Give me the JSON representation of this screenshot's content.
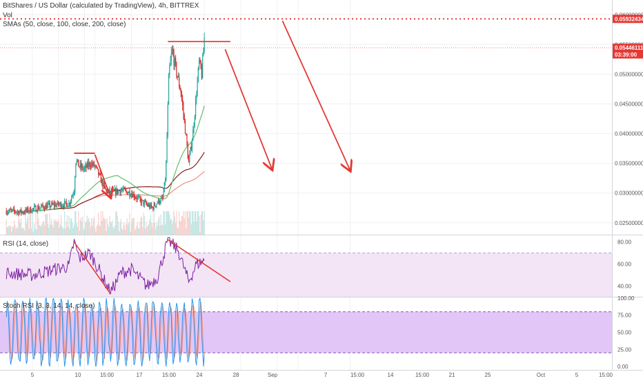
{
  "header": {
    "title": "BitShares / US Dollar (calculated by TradingView), 4h, BITTREX",
    "vol_label": "Vol",
    "sma_label": "SMAs (50, close, 100, close, 200, close)"
  },
  "panes": {
    "rsi_title": "RSI (14, close)",
    "stoch_title": "Stoch RSI (3, 3, 14, 14, close)"
  },
  "colors": {
    "candle_up": "#26a69a",
    "candle_down": "#d32f2f",
    "sma50": "#66bb6a",
    "sma100": "#8b1a1a",
    "sma200": "#f28b82",
    "rsi_line": "#7b1fa2",
    "rsi_band": "#f3e5f5",
    "stoch_k": "#2196f3",
    "stoch_d": "#ff8a65",
    "stoch_band": "#e1c6f7",
    "annotation": "#e53935",
    "resistance_dotted": "#e53935",
    "price_label_bg": "#e53935"
  },
  "chart_data": [
    {
      "type": "candlestick",
      "panel": "price",
      "price_axis_ticks": [
        "0.06000000",
        "0.05500000",
        "0.05000000",
        "0.04500000",
        "0.04000000",
        "0.03500000",
        "0.03000000",
        "0.02500000"
      ],
      "price_axis_values": [
        0.06,
        0.055,
        0.05,
        0.045,
        0.04,
        0.035,
        0.03,
        0.025
      ],
      "ylim": [
        0.023,
        0.0625
      ],
      "price_labels": [
        {
          "text": "0.05932434",
          "value": 0.05932434
        },
        {
          "text": "0.05446111",
          "value": 0.05446111
        },
        {
          "text": "03:39:00",
          "value": 0.05335
        }
      ],
      "series": [
        {
          "name": "SMA 50",
          "kind": "line"
        },
        {
          "name": "SMA 100",
          "kind": "line"
        },
        {
          "name": "SMA 200",
          "kind": "line"
        }
      ],
      "annotations": [
        {
          "kind": "dotted-horizontal",
          "y": 0.05932434
        },
        {
          "kind": "horizontal",
          "from_x": "Aug 13",
          "to_x": "Aug 17",
          "y": 0.0367
        },
        {
          "kind": "arrow",
          "from": [
            "Aug 17",
            0.0365
          ],
          "to": [
            "Aug 20",
            0.0293
          ]
        },
        {
          "kind": "horizontal",
          "from_x": "Aug 31",
          "to_x": "Sep 12",
          "y": 0.0555
        },
        {
          "kind": "arrow",
          "from": [
            "Sep 11",
            0.0542
          ],
          "to": [
            "Sep 20",
            0.034
          ]
        },
        {
          "kind": "arrow",
          "from": [
            "Sep 22",
            0.059
          ],
          "to": [
            "Oct 5",
            0.0338
          ]
        }
      ]
    },
    {
      "type": "line",
      "panel": "rsi",
      "series": [
        {
          "name": "RSI",
          "kind": "line"
        }
      ],
      "ylim": [
        31,
        86
      ],
      "band": [
        30,
        70
      ],
      "axis_ticks": [
        "80.00",
        "60.00",
        "40.00"
      ],
      "axis_values": [
        80,
        60,
        40
      ],
      "annotations": [
        {
          "kind": "line",
          "from": [
            "Aug 13",
            80
          ],
          "to": [
            "Aug 20",
            33
          ]
        },
        {
          "kind": "line",
          "from": [
            "Aug 31",
            82
          ],
          "to": [
            "Sep 12",
            44
          ]
        }
      ]
    },
    {
      "type": "line",
      "panel": "stoch_rsi",
      "series": [
        {
          "name": "K",
          "kind": "line"
        },
        {
          "name": "D",
          "kind": "line"
        }
      ],
      "ylim": [
        -5,
        102
      ],
      "band": [
        20,
        80
      ],
      "axis_ticks": [
        "100.00",
        "75.00",
        "50.00",
        "25.00",
        "0.00"
      ],
      "axis_values": [
        100,
        75,
        50,
        25,
        0
      ],
      "x_ticks": [
        "5",
        "10",
        "15:00",
        "17",
        "15:00",
        "24",
        "28",
        "Sep",
        "7",
        "15:00",
        "14",
        "15:00",
        "21",
        "25",
        "Oct",
        "5",
        "15:00"
      ]
    }
  ]
}
